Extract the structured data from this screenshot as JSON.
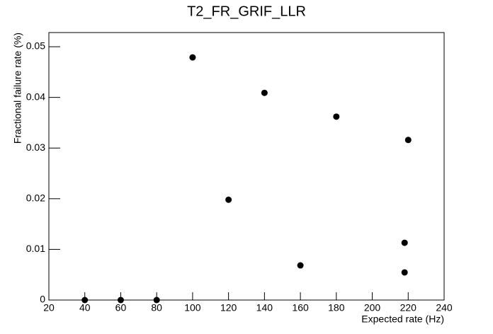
{
  "chart_data": {
    "type": "scatter",
    "title": "T2_FR_GRIF_LLR",
    "x_label": "Expected rate (Hz)",
    "y_label": "Fractional failure rate (%)",
    "x": [
      40,
      60,
      80,
      100,
      120,
      140,
      160,
      180,
      220,
      218,
      218
    ],
    "values": [
      0,
      0,
      0,
      0.0479,
      0.0198,
      0.0409,
      0.00684,
      0.0362,
      0.0316,
      0.0113,
      0.00545
    ],
    "color": "#000000",
    "xlim": [
      20,
      240
    ],
    "xticks": [
      20,
      40,
      60,
      80,
      100,
      120,
      140,
      160,
      180,
      200,
      220,
      240
    ],
    "ylim": [
      0,
      0.0528
    ],
    "yticks": [
      0,
      0.01,
      0.02,
      0.03,
      0.04,
      0.05
    ],
    "grid": false
  }
}
